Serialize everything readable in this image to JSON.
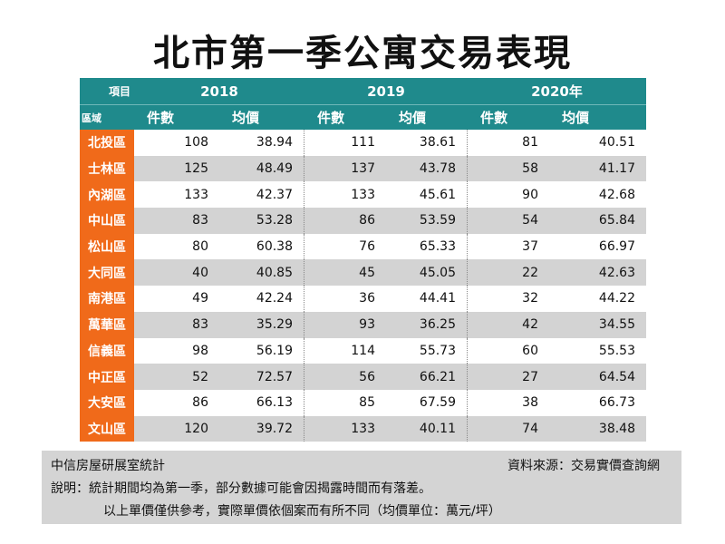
{
  "title": "北市第一季公寓交易表現",
  "header": {
    "item_label": "項目",
    "region_label": "區域",
    "years": [
      "2018",
      "2019",
      "2020年"
    ],
    "count_label": "件數",
    "price_label": "均價"
  },
  "rows": [
    {
      "region": "北投區",
      "c2018": "108",
      "p2018": "38.94",
      "c2019": "111",
      "p2019": "38.61",
      "c2020": "81",
      "p2020": "40.51"
    },
    {
      "region": "士林區",
      "c2018": "125",
      "p2018": "48.49",
      "c2019": "137",
      "p2019": "43.78",
      "c2020": "58",
      "p2020": "41.17"
    },
    {
      "region": "內湖區",
      "c2018": "133",
      "p2018": "42.37",
      "c2019": "133",
      "p2019": "45.61",
      "c2020": "90",
      "p2020": "42.68"
    },
    {
      "region": "中山區",
      "c2018": "83",
      "p2018": "53.28",
      "c2019": "86",
      "p2019": "53.59",
      "c2020": "54",
      "p2020": "65.84"
    },
    {
      "region": "松山區",
      "c2018": "80",
      "p2018": "60.38",
      "c2019": "76",
      "p2019": "65.33",
      "c2020": "37",
      "p2020": "66.97"
    },
    {
      "region": "大同區",
      "c2018": "40",
      "p2018": "40.85",
      "c2019": "45",
      "p2019": "45.05",
      "c2020": "22",
      "p2020": "42.63"
    },
    {
      "region": "南港區",
      "c2018": "49",
      "p2018": "42.24",
      "c2019": "36",
      "p2019": "44.41",
      "c2020": "32",
      "p2020": "44.22"
    },
    {
      "region": "萬華區",
      "c2018": "83",
      "p2018": "35.29",
      "c2019": "93",
      "p2019": "36.25",
      "c2020": "42",
      "p2020": "34.55"
    },
    {
      "region": "信義區",
      "c2018": "98",
      "p2018": "56.19",
      "c2019": "114",
      "p2019": "55.73",
      "c2020": "60",
      "p2020": "55.53"
    },
    {
      "region": "中正區",
      "c2018": "52",
      "p2018": "72.57",
      "c2019": "56",
      "p2019": "66.21",
      "c2020": "27",
      "p2020": "64.54"
    },
    {
      "region": "大安區",
      "c2018": "86",
      "p2018": "66.13",
      "c2019": "85",
      "p2019": "67.59",
      "c2020": "38",
      "p2020": "66.73"
    },
    {
      "region": "文山區",
      "c2018": "120",
      "p2018": "39.72",
      "c2019": "133",
      "p2019": "40.11",
      "c2020": "74",
      "p2020": "38.48"
    }
  ],
  "notes": {
    "author": "中信房屋研展室統計",
    "source": "資料來源：交易實價查詢網",
    "explanation": "說明：統計期間均為第一季，部分數據可能會因揭露時間而有落差。",
    "reference": "以上單價僅供參考，實際單價依個案而有所不同（均價單位：萬元/坪）"
  },
  "colors": {
    "header_teal": "#1f8a8c",
    "region_orange": "#f06a1a",
    "row_alt_gray": "#d3d3d3",
    "note_bg": "#d4d4d4"
  }
}
